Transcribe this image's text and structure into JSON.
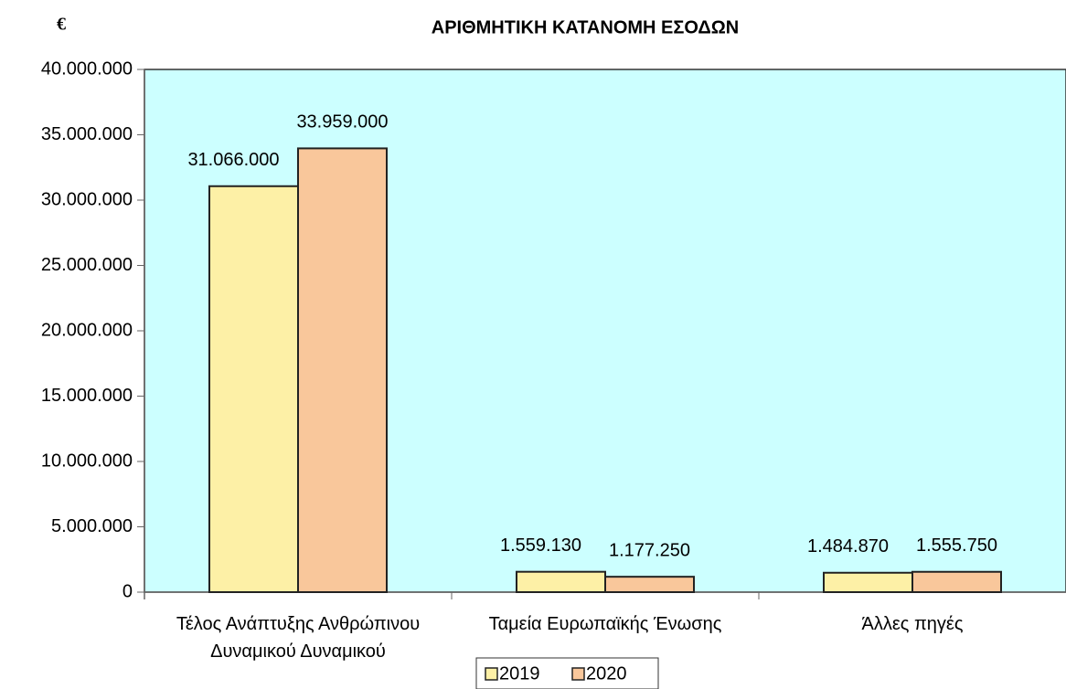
{
  "chart_data": {
    "type": "bar",
    "title": "ΑΡΙΘΜΗΤΙΚΗ ΚΑΤΑΝΟΜΗ ΕΣΟΔΩΝ",
    "y_label": "€",
    "categories": [
      "Τέλος Ανάπτυξης Ανθρώπινου Δυναμικού Δυναμικού",
      "Ταμεία Ευρωπαϊκής Ένωσης",
      "Άλλες πηγές"
    ],
    "series": [
      {
        "name": "2019",
        "color": "#fdf0a6",
        "values": [
          31066000,
          1559130,
          1484870
        ],
        "value_labels": [
          "31.066.000",
          "1.559.130",
          "1.484.870"
        ]
      },
      {
        "name": "2020",
        "color": "#f9c79b",
        "values": [
          33959000,
          1177250,
          1555750
        ],
        "value_labels": [
          "33.959.000",
          "1.177.250",
          "1.555.750"
        ]
      }
    ],
    "ylim": [
      0,
      40000000
    ],
    "yticks": [
      0,
      {
        "value": 5000000,
        "label": "5.000.000"
      },
      {
        "value": 10000000,
        "label": "10.000.000"
      },
      {
        "value": 15000000,
        "label": "15.000.000"
      },
      {
        "value": 20000000,
        "label": "20.000.000"
      },
      {
        "value": 25000000,
        "label": "25.000.000"
      },
      {
        "value": 30000000,
        "label": "30.000.000"
      },
      {
        "value": 35000000,
        "label": "35.000.000"
      },
      {
        "value": 40000000,
        "label": "40.000.000"
      }
    ],
    "plot_background": "#ccffff",
    "legend": "bottom"
  }
}
